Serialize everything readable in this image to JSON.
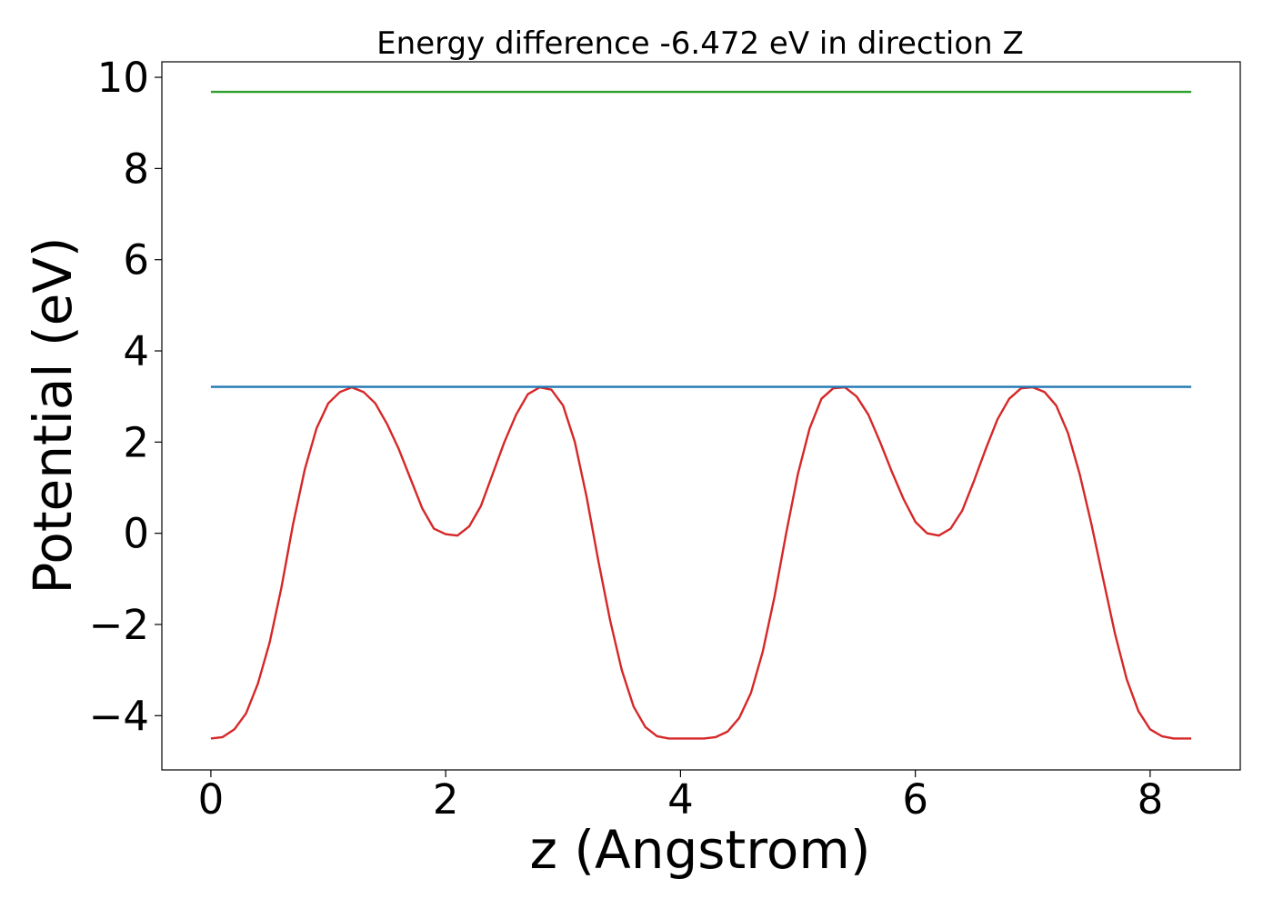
{
  "chart_data": {
    "type": "line",
    "title": "Energy difference -6.472 eV in direction Z",
    "xlabel": "z (Angstrom)",
    "ylabel": "Potential (eV)",
    "xlim": [
      -0.4175,
      8.7675
    ],
    "ylim": [
      -5.19,
      10.34
    ],
    "xticks": [
      0,
      2,
      4,
      6,
      8
    ],
    "xtick_labels": [
      "0",
      "2",
      "4",
      "6",
      "8"
    ],
    "yticks": [
      -4,
      -2,
      0,
      2,
      4,
      6,
      8,
      10
    ],
    "ytick_labels": [
      "−4",
      "−2",
      "0",
      "2",
      "4",
      "6",
      "8",
      "10"
    ],
    "grid": false,
    "series": [
      {
        "color": "#d62728",
        "x": [
          0,
          0.1,
          0.2,
          0.3,
          0.4,
          0.5,
          0.6,
          0.7,
          0.8,
          0.9,
          1.0,
          1.1,
          1.2,
          1.3,
          1.4,
          1.5,
          1.6,
          1.7,
          1.8,
          1.9,
          2.0,
          2.1,
          2.2,
          2.3,
          2.4,
          2.5,
          2.6,
          2.7,
          2.8,
          2.9,
          3.0,
          3.1,
          3.2,
          3.3,
          3.4,
          3.5,
          3.6,
          3.7,
          3.8,
          3.9,
          4.0,
          4.1,
          4.2,
          4.3,
          4.4,
          4.5,
          4.6,
          4.7,
          4.8,
          4.9,
          5.0,
          5.1,
          5.2,
          5.3,
          5.4,
          5.5,
          5.6,
          5.7,
          5.8,
          5.9,
          6.0,
          6.1,
          6.2,
          6.3,
          6.4,
          6.5,
          6.6,
          6.7,
          6.8,
          6.9,
          7.0,
          7.1,
          7.2,
          7.3,
          7.4,
          7.5,
          7.6,
          7.7,
          7.8,
          7.9,
          8.0,
          8.1,
          8.2,
          8.35
        ],
        "y": [
          -4.5,
          -4.47,
          -4.3,
          -3.95,
          -3.3,
          -2.4,
          -1.2,
          0.2,
          1.4,
          2.3,
          2.85,
          3.1,
          3.2,
          3.1,
          2.85,
          2.4,
          1.85,
          1.2,
          0.55,
          0.1,
          -0.02,
          -0.05,
          0.15,
          0.6,
          1.3,
          2.0,
          2.6,
          3.05,
          3.2,
          3.15,
          2.8,
          2.0,
          0.8,
          -0.6,
          -1.9,
          -3.0,
          -3.8,
          -4.25,
          -4.45,
          -4.5,
          -4.5,
          -4.5,
          -4.5,
          -4.47,
          -4.35,
          -4.05,
          -3.5,
          -2.6,
          -1.4,
          0.0,
          1.3,
          2.3,
          2.95,
          3.18,
          3.2,
          3.0,
          2.6,
          2.0,
          1.35,
          0.75,
          0.25,
          0.0,
          -0.05,
          0.1,
          0.5,
          1.15,
          1.85,
          2.5,
          2.95,
          3.18,
          3.2,
          3.1,
          2.8,
          2.2,
          1.3,
          0.2,
          -1.0,
          -2.2,
          -3.2,
          -3.9,
          -4.3,
          -4.45,
          -4.5,
          -4.5
        ]
      },
      {
        "color": "#1f77b4",
        "x": [
          0,
          8.35
        ],
        "y": [
          3.21,
          3.21
        ]
      },
      {
        "color": "#2ca02c",
        "x": [
          0,
          8.35
        ],
        "y": [
          9.68,
          9.68
        ]
      }
    ]
  }
}
